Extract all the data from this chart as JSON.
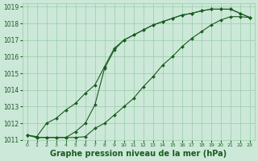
{
  "bg_color": "#cce8d8",
  "grid_color": "#99ccaa",
  "line_color": "#1a5c20",
  "marker_color": "#1a5c20",
  "xlabel": "Graphe pression niveau de la mer (hPa)",
  "xlabel_fontsize": 7,
  "xlim": [
    -0.5,
    23.5
  ],
  "ylim": [
    1011,
    1019.2
  ],
  "yticks": [
    1011,
    1012,
    1013,
    1014,
    1015,
    1016,
    1017,
    1018,
    1019
  ],
  "xticks": [
    0,
    1,
    2,
    3,
    4,
    5,
    6,
    7,
    8,
    9,
    10,
    11,
    12,
    13,
    14,
    15,
    16,
    17,
    18,
    19,
    20,
    21,
    22,
    23
  ],
  "series1_x": [
    0,
    1,
    2,
    3,
    4,
    5,
    6,
    7,
    8,
    9,
    10,
    11,
    12,
    13,
    14,
    15,
    16,
    17,
    18,
    19,
    20,
    21,
    22,
    23
  ],
  "series1_y": [
    1011.3,
    1011.2,
    1012.0,
    1012.3,
    1012.8,
    1013.2,
    1013.8,
    1014.3,
    1015.4,
    1016.5,
    1017.0,
    1017.3,
    1017.6,
    1017.9,
    1018.1,
    1018.3,
    1018.5,
    1018.6,
    1018.75,
    1018.85,
    1018.85,
    1018.85,
    1018.6,
    1018.35
  ],
  "series2_x": [
    0,
    1,
    2,
    3,
    4,
    5,
    6,
    7,
    8,
    9,
    10,
    11,
    12,
    13,
    14,
    15,
    16,
    17,
    18,
    19,
    20,
    21,
    22,
    23
  ],
  "series2_y": [
    1011.3,
    1011.15,
    1011.15,
    1011.15,
    1011.15,
    1011.15,
    1011.2,
    1011.7,
    1012.0,
    1012.5,
    1013.0,
    1013.5,
    1014.2,
    1014.8,
    1015.5,
    1016.0,
    1016.6,
    1017.1,
    1017.5,
    1017.9,
    1018.2,
    1018.4,
    1018.4,
    1018.35
  ],
  "series3_x": [
    0,
    1,
    2,
    3,
    4,
    5,
    6,
    7,
    8,
    9,
    10,
    11,
    12,
    13,
    14,
    15,
    16,
    17,
    18,
    19,
    20,
    21,
    22,
    23
  ],
  "series3_y": [
    1011.3,
    1011.15,
    1011.15,
    1011.15,
    1011.15,
    1011.5,
    1012.0,
    1013.1,
    1015.3,
    1016.4,
    1017.0,
    1017.3,
    1017.6,
    1017.9,
    1018.1,
    1018.3,
    1018.5,
    1018.6,
    1018.75,
    1018.85,
    1018.85,
    1018.85,
    1018.6,
    1018.35
  ]
}
